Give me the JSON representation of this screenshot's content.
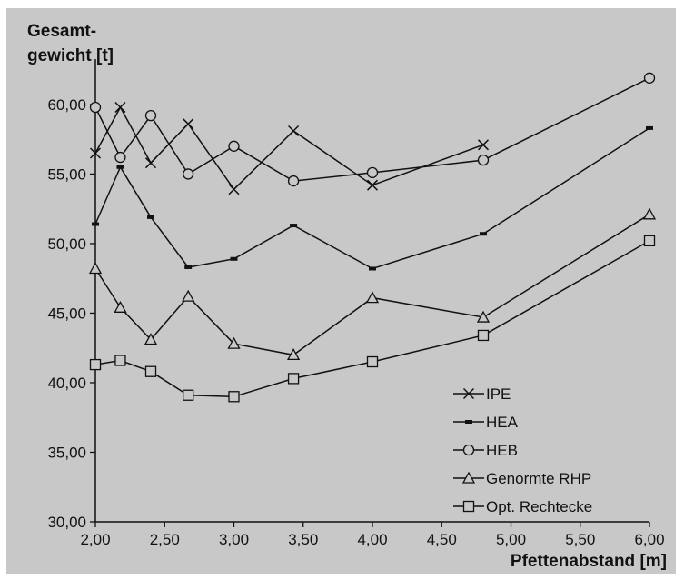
{
  "chart_data": {
    "type": "line",
    "ylabel": [
      "Gesamt-",
      "gewicht [t]"
    ],
    "xlabel": "Pfettenabstand [m]",
    "xlim": [
      2.0,
      6.0
    ],
    "ylim": [
      30.0,
      63.0
    ],
    "xticks": [
      "2,00",
      "2,50",
      "3,00",
      "3,50",
      "4,00",
      "4,50",
      "5,00",
      "5,50",
      "6,00"
    ],
    "xtick_values": [
      2.0,
      2.5,
      3.0,
      3.5,
      4.0,
      4.5,
      5.0,
      5.5,
      6.0
    ],
    "yticks": [
      "30,00",
      "35,00",
      "40,00",
      "45,00",
      "50,00",
      "55,00",
      "60,00"
    ],
    "ytick_values": [
      30,
      35,
      40,
      45,
      50,
      55,
      60
    ],
    "grid": false,
    "legend_position": "bottom-right",
    "series": [
      {
        "name": "IPE",
        "marker": "x",
        "x": [
          2.0,
          2.18,
          2.4,
          2.67,
          3.0,
          3.43,
          4.0,
          4.8
        ],
        "y": [
          56.5,
          59.8,
          55.8,
          58.6,
          53.9,
          58.1,
          54.2,
          57.1
        ]
      },
      {
        "name": "HEA",
        "marker": "dash",
        "x": [
          2.0,
          2.18,
          2.4,
          2.67,
          3.0,
          3.43,
          4.0,
          4.8,
          6.0
        ],
        "y": [
          51.4,
          55.5,
          51.9,
          48.3,
          48.9,
          51.3,
          48.2,
          50.7,
          58.3
        ]
      },
      {
        "name": "HEB",
        "marker": "circle",
        "x": [
          2.0,
          2.18,
          2.4,
          2.67,
          3.0,
          3.43,
          4.0,
          4.8,
          6.0
        ],
        "y": [
          59.8,
          56.2,
          59.2,
          55.0,
          57.0,
          54.5,
          55.1,
          56.0,
          61.9
        ]
      },
      {
        "name": "Genormte RHP",
        "marker": "triangle",
        "x": [
          2.0,
          2.18,
          2.4,
          2.67,
          3.0,
          3.43,
          4.0,
          4.8,
          6.0
        ],
        "y": [
          48.2,
          45.4,
          43.1,
          46.2,
          42.8,
          42.0,
          46.1,
          44.7,
          52.1
        ]
      },
      {
        "name": "Opt. Rechtecke",
        "marker": "square",
        "x": [
          2.0,
          2.18,
          2.4,
          2.67,
          3.0,
          3.43,
          4.0,
          4.8,
          6.0
        ],
        "y": [
          41.3,
          41.6,
          40.8,
          39.1,
          39.0,
          40.3,
          41.5,
          43.4,
          50.2
        ]
      }
    ]
  },
  "colors": {
    "background": "#c8c8c8",
    "line": "#111111"
  }
}
